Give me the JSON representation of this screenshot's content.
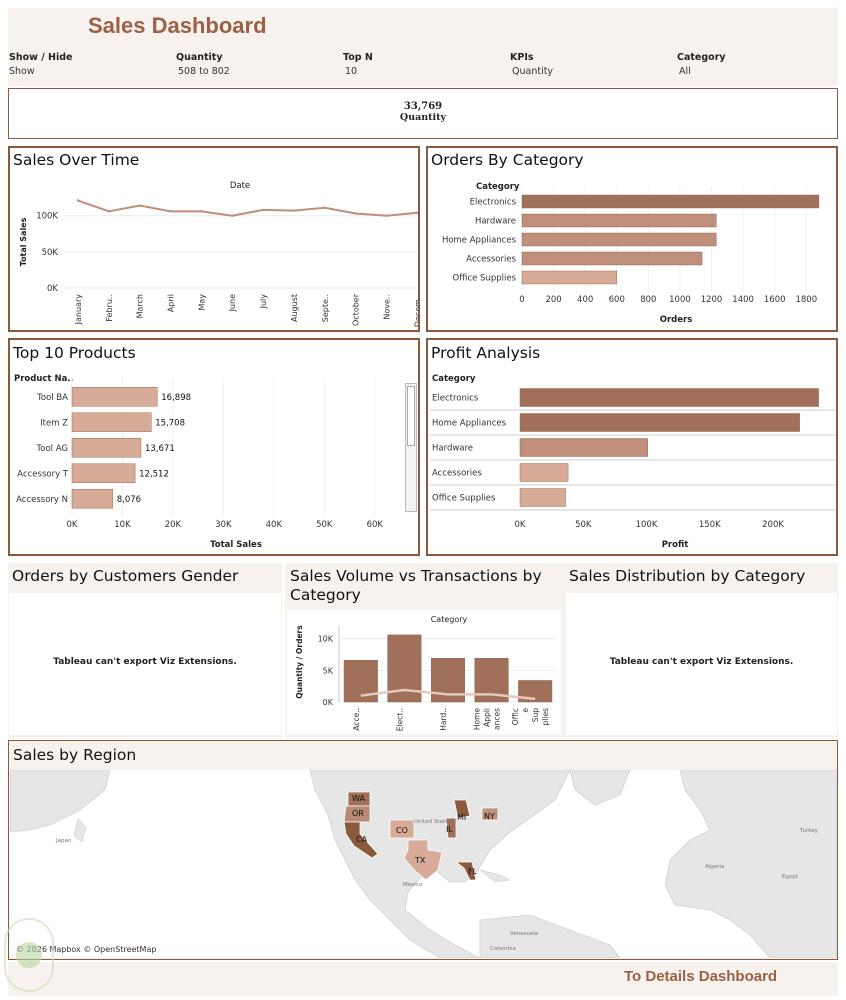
{
  "title": "Sales Dashboard",
  "filters": [
    {
      "label": "Show / Hide",
      "value": "Show"
    },
    {
      "label": "Quantity",
      "value": "508 to 802"
    },
    {
      "label": "Top N",
      "value": "10"
    },
    {
      "label": "KPIs",
      "value": "Quantity"
    },
    {
      "label": "Category",
      "value": "All"
    }
  ],
  "kpi": {
    "value": "33,769",
    "label": "Quantity"
  },
  "panels": {
    "sales_over_time": "Sales Over Time",
    "orders_by_category": "Orders By Category",
    "top_products": "Top 10 Products",
    "profit_analysis": "Profit Analysis",
    "orders_gender": "Orders by Customers Gender",
    "sales_volume": "Sales Volume vs Transactions by Category",
    "sales_distribution": "Sales Distribution by Category",
    "sales_region": "Sales by Region"
  },
  "viz_extension_msg": "Tableau can't export Viz Extensions.",
  "map": {
    "attribution": "© 2026 Mapbox © OpenStreetMap",
    "states": [
      "WA",
      "OR",
      "CA",
      "CO",
      "TX",
      "MI",
      "NY",
      "IL",
      "FL"
    ],
    "places": [
      "United States",
      "Mexico",
      "Japan",
      "Turkey",
      "Algeria",
      "Egypt",
      "Venezuela",
      "Colombia"
    ]
  },
  "footer_link": "To Details Dashboard",
  "colors": {
    "dark": "#a0705a",
    "mid": "#bf8f7b",
    "light": "#d7ab98",
    "border": "#8b5a3c",
    "title": "#9a6145"
  },
  "chart_data": [
    {
      "type": "line",
      "title": "",
      "xlabel": "Date",
      "ylabel": "Total Sales",
      "x": [
        "January",
        "Febru..",
        "March",
        "April",
        "May",
        "June",
        "July",
        "August",
        "Septe..",
        "October",
        "Nove..",
        "Decem.."
      ],
      "values": [
        121000,
        106000,
        114000,
        106000,
        106000,
        100000,
        108000,
        107000,
        111000,
        103000,
        100000,
        104000
      ],
      "yticks": [
        "0K",
        "50K",
        "100K"
      ],
      "ylim": [
        0,
        130000
      ],
      "grid": true
    },
    {
      "type": "bar",
      "orientation": "horizontal",
      "title": "",
      "ylabel": "Category",
      "xlabel": "Orders",
      "categories": [
        "Electronics",
        "Hardware",
        "Home Appliances",
        "Accessories",
        "Office Supplies"
      ],
      "values": [
        1880,
        1230,
        1230,
        1140,
        600
      ],
      "xticks": [
        "0",
        "200",
        "400",
        "600",
        "800",
        "1000",
        "1200",
        "1400",
        "1600",
        "1800"
      ],
      "xlim": [
        0,
        1950
      ]
    },
    {
      "type": "bar",
      "orientation": "horizontal",
      "title": "",
      "ylabel": "Product Na..",
      "xlabel": "Total Sales",
      "categories": [
        "Tool BA",
        "Item Z",
        "Tool AG",
        "Accessory T",
        "Accessory N"
      ],
      "values": [
        16898,
        15708,
        13671,
        12512,
        8076
      ],
      "labels": [
        "16,898",
        "15,708",
        "13,671",
        "12,512",
        "8,076"
      ],
      "xticks": [
        "0K",
        "10K",
        "20K",
        "30K",
        "40K",
        "50K",
        "60K"
      ],
      "xlim": [
        0,
        65000
      ]
    },
    {
      "type": "bar",
      "orientation": "horizontal",
      "title": "",
      "ylabel": "Category",
      "xlabel": "Profit",
      "categories": [
        "Electronics",
        "Home Appliances",
        "Hardware",
        "Accessories",
        "Office Supplies"
      ],
      "values": [
        236000,
        221000,
        101000,
        38000,
        36000
      ],
      "xticks": [
        "0K",
        "50K",
        "100K",
        "150K",
        "200K"
      ],
      "xlim": [
        0,
        245000
      ]
    },
    {
      "type": "bar",
      "title": "",
      "xlabel": "Category",
      "ylabel": "Quantity / Orders",
      "categories": [
        "Acce..",
        "Elect..",
        "Hard..",
        "Home Appli ances",
        "Offic e Sup plies"
      ],
      "series": [
        {
          "values": [
            6600,
            10600,
            6900,
            6900,
            3400
          ]
        },
        {
          "values": [
            1000,
            1900,
            1200,
            1200,
            500
          ]
        }
      ],
      "yticks": [
        "0K",
        "5K",
        "10K"
      ],
      "ylim": [
        0,
        12000
      ]
    }
  ]
}
